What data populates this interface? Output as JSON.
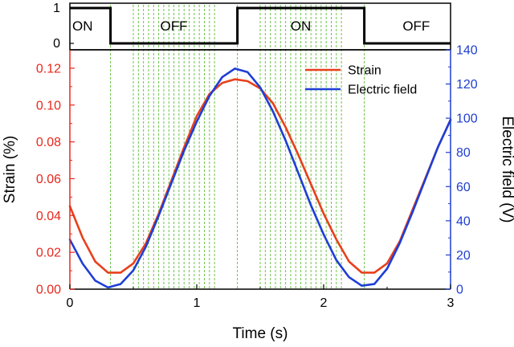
{
  "chart_data": [
    {
      "type": "line",
      "panel": "state",
      "y_ticks": [
        "1",
        "0"
      ],
      "state_labels": [
        {
          "text": "ON",
          "x_center": 0.1
        },
        {
          "text": "OFF",
          "x_center": 0.82
        },
        {
          "text": "ON",
          "x_center": 1.82
        },
        {
          "text": "OFF",
          "x_center": 2.73
        }
      ],
      "state_steps": {
        "x": [
          0,
          0.32,
          0.32,
          1.32,
          1.32,
          2.32,
          2.32,
          3
        ],
        "y": [
          1,
          1,
          0,
          0,
          1,
          1,
          0,
          0
        ]
      }
    },
    {
      "type": "line",
      "panel": "main",
      "xlabel": "Time (s)",
      "ylabel_left": "Strain (%)",
      "ylabel_right": "Electric field (V)",
      "xlim": [
        0,
        3
      ],
      "ylim_left": [
        0,
        0.13
      ],
      "ylim_right": [
        0,
        140
      ],
      "x_ticks": [
        "0",
        "1",
        "2",
        "3"
      ],
      "y_left_ticks": [
        "0.00",
        "0.02",
        "0.04",
        "0.06",
        "0.08",
        "0.10",
        "0.12"
      ],
      "y_right_ticks": [
        "0",
        "20",
        "40",
        "60",
        "80",
        "100",
        "120",
        "140"
      ],
      "colors": {
        "strain": "#e8401c",
        "field": "#1e3ed6",
        "left_axis": "#e8281c",
        "right_axis": "#1f3fd0",
        "gridline": "#6cc44a"
      },
      "vertical_lines_x": [
        0.32,
        0.5,
        0.54,
        0.58,
        0.62,
        0.66,
        0.7,
        0.74,
        0.78,
        0.82,
        0.86,
        0.9,
        0.94,
        0.98,
        1.02,
        1.06,
        1.1,
        1.14,
        1.32,
        1.5,
        1.54,
        1.58,
        1.62,
        1.66,
        1.7,
        1.74,
        1.78,
        1.82,
        1.86,
        1.9,
        1.94,
        1.98,
        2.02,
        2.06,
        2.1,
        2.14,
        2.32
      ],
      "legend": {
        "position": "top-right",
        "entries": [
          "Strain",
          "Electric field"
        ]
      },
      "series": [
        {
          "name": "Strain",
          "axis": "left",
          "x": [
            0,
            0.1,
            0.2,
            0.3,
            0.4,
            0.5,
            0.6,
            0.7,
            0.8,
            0.9,
            1.0,
            1.1,
            1.2,
            1.3,
            1.4,
            1.5,
            1.6,
            1.7,
            1.8,
            1.9,
            2.0,
            2.1,
            2.2,
            2.3,
            2.4,
            2.5,
            2.6,
            2.7,
            2.8,
            2.9,
            3.0
          ],
          "y": [
            0.045,
            0.028,
            0.015,
            0.009,
            0.009,
            0.014,
            0.025,
            0.041,
            0.059,
            0.077,
            0.094,
            0.106,
            0.112,
            0.114,
            0.113,
            0.109,
            0.101,
            0.088,
            0.073,
            0.057,
            0.041,
            0.027,
            0.015,
            0.009,
            0.009,
            0.014,
            0.026,
            0.043,
            0.06,
            0.077,
            0.092
          ]
        },
        {
          "name": "Electric field",
          "axis": "right",
          "x": [
            0,
            0.1,
            0.2,
            0.3,
            0.4,
            0.5,
            0.6,
            0.7,
            0.8,
            0.9,
            1.0,
            1.1,
            1.2,
            1.3,
            1.4,
            1.5,
            1.6,
            1.7,
            1.8,
            1.9,
            2.0,
            2.1,
            2.2,
            2.3,
            2.4,
            2.5,
            2.6,
            2.7,
            2.8,
            2.9,
            3.0
          ],
          "y": [
            29,
            15,
            5,
            1,
            3,
            11,
            25,
            43,
            62,
            81,
            98,
            113,
            124,
            129,
            127,
            118,
            104,
            87,
            68,
            49,
            32,
            17,
            7,
            2,
            3,
            12,
            27,
            45,
            64,
            83,
            99
          ]
        }
      ]
    }
  ]
}
